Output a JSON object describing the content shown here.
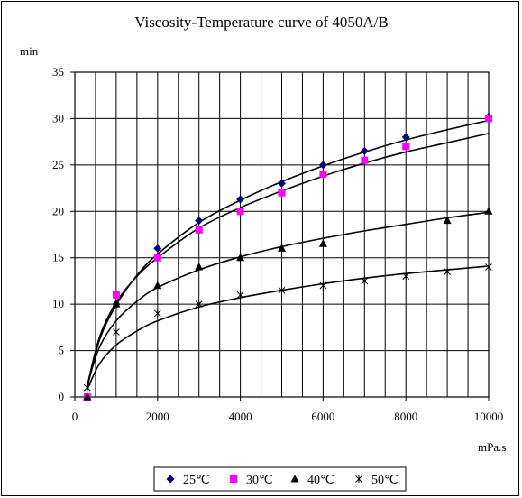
{
  "chart_data": {
    "type": "scatter",
    "title": "Viscosity-Temperature curve of 4050A/B",
    "xlabel": "mPa.s",
    "ylabel": "min",
    "xlim": [
      0,
      10000
    ],
    "ylim": [
      0,
      35
    ],
    "x_ticks": [
      "0",
      "2000",
      "4000",
      "6000",
      "8000",
      "10000"
    ],
    "y_ticks": [
      "0",
      "5",
      "10",
      "15",
      "20",
      "25",
      "30",
      "35"
    ],
    "grid": "vertical every 500, horizontal every 5",
    "legend_position": "bottom",
    "series": [
      {
        "name": "25℃",
        "marker": "diamond",
        "color": "#000080",
        "points": [
          [
            300,
            0
          ],
          [
            1000,
            10
          ],
          [
            2000,
            16
          ],
          [
            3000,
            19
          ],
          [
            4000,
            21.3
          ],
          [
            5000,
            23
          ],
          [
            6000,
            25
          ],
          [
            7000,
            26.5
          ],
          [
            8000,
            28
          ],
          [
            10000,
            30.2
          ]
        ],
        "trend": [
          [
            300,
            1
          ],
          [
            600,
            6.2
          ],
          [
            1000,
            9.9
          ],
          [
            1500,
            13.1
          ],
          [
            2000,
            15.4
          ],
          [
            3000,
            18.8
          ],
          [
            4000,
            21.2
          ],
          [
            5000,
            23.2
          ],
          [
            6000,
            24.9
          ],
          [
            7000,
            26.4
          ],
          [
            8000,
            27.7
          ],
          [
            9000,
            28.8
          ],
          [
            10000,
            29.8
          ]
        ]
      },
      {
        "name": "30℃",
        "marker": "square",
        "color": "#ff00ff",
        "points": [
          [
            300,
            0
          ],
          [
            1000,
            11
          ],
          [
            2000,
            15
          ],
          [
            3000,
            18
          ],
          [
            4000,
            20
          ],
          [
            5000,
            22
          ],
          [
            6000,
            24
          ],
          [
            7000,
            25.5
          ],
          [
            8000,
            27
          ],
          [
            10000,
            30
          ]
        ],
        "trend": [
          [
            300,
            1.2
          ],
          [
            600,
            6.5
          ],
          [
            1000,
            10.2
          ],
          [
            1500,
            13.0
          ],
          [
            2000,
            15.0
          ],
          [
            3000,
            18.2
          ],
          [
            4000,
            20.4
          ],
          [
            5000,
            22.2
          ],
          [
            6000,
            23.8
          ],
          [
            7000,
            25.2
          ],
          [
            8000,
            26.4
          ],
          [
            9000,
            27.4
          ],
          [
            10000,
            28.4
          ]
        ]
      },
      {
        "name": "40℃",
        "marker": "triangle",
        "color": "#000000",
        "points": [
          [
            300,
            0
          ],
          [
            1000,
            10
          ],
          [
            2000,
            12
          ],
          [
            3000,
            14
          ],
          [
            4000,
            15
          ],
          [
            5000,
            16
          ],
          [
            6000,
            16.5
          ],
          [
            9000,
            19
          ],
          [
            10000,
            20
          ]
        ],
        "trend": [
          [
            300,
            1.3
          ],
          [
            600,
            5.4
          ],
          [
            1000,
            8.2
          ],
          [
            1500,
            10.3
          ],
          [
            2000,
            11.8
          ],
          [
            3000,
            13.7
          ],
          [
            4000,
            15.1
          ],
          [
            5000,
            16.2
          ],
          [
            6000,
            17.1
          ],
          [
            7000,
            17.9
          ],
          [
            8000,
            18.6
          ],
          [
            9000,
            19.3
          ],
          [
            10000,
            19.9
          ]
        ]
      },
      {
        "name": "50℃",
        "marker": "star",
        "color": "#000000",
        "points": [
          [
            300,
            1
          ],
          [
            1000,
            7
          ],
          [
            2000,
            9
          ],
          [
            3000,
            10
          ],
          [
            4000,
            11
          ],
          [
            5000,
            11.5
          ],
          [
            6000,
            12
          ],
          [
            7000,
            12.5
          ],
          [
            8000,
            13
          ],
          [
            9000,
            13.5
          ],
          [
            10000,
            14
          ]
        ],
        "trend": [
          [
            300,
            0.8
          ],
          [
            600,
            3.6
          ],
          [
            1000,
            5.6
          ],
          [
            1500,
            7.1
          ],
          [
            2000,
            8.2
          ],
          [
            3000,
            9.7
          ],
          [
            4000,
            10.7
          ],
          [
            5000,
            11.5
          ],
          [
            6000,
            12.2
          ],
          [
            7000,
            12.8
          ],
          [
            8000,
            13.3
          ],
          [
            9000,
            13.7
          ],
          [
            10000,
            14.1
          ]
        ]
      }
    ]
  }
}
